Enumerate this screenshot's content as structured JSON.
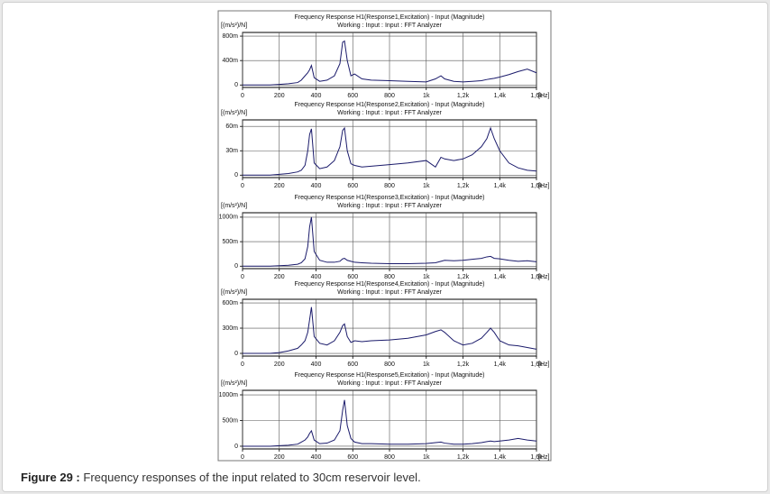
{
  "chart_data": [
    {
      "type": "line",
      "title": "Frequency Response H1(Response1,Excitation) - Input (Magnitude)",
      "subtitle": "Working : Input : Input : FFT Analyzer",
      "ylabel": "[(m/s²)/N]",
      "xlabel": "[Hz]",
      "x": [
        0,
        50,
        100,
        150,
        200,
        250,
        300,
        320,
        340,
        355,
        365,
        375,
        390,
        420,
        460,
        500,
        530,
        545,
        555,
        570,
        590,
        610,
        650,
        700,
        800,
        900,
        1000,
        1050,
        1080,
        1100,
        1150,
        1200,
        1250,
        1300,
        1330,
        1350,
        1370,
        1400,
        1450,
        1500,
        1550,
        1600
      ],
      "values": [
        0,
        0,
        0,
        0,
        0.01,
        0.02,
        0.04,
        0.08,
        0.15,
        0.2,
        0.25,
        0.32,
        0.12,
        0.06,
        0.08,
        0.15,
        0.35,
        0.7,
        0.72,
        0.4,
        0.15,
        0.18,
        0.1,
        0.08,
        0.07,
        0.06,
        0.05,
        0.1,
        0.15,
        0.1,
        0.06,
        0.05,
        0.06,
        0.07,
        0.09,
        0.1,
        0.11,
        0.13,
        0.17,
        0.22,
        0.26,
        0.2
      ],
      "color": "#1b1b6b",
      "xlim": [
        0,
        1600
      ],
      "xticks": [
        0,
        200,
        400,
        600,
        800,
        {
          "value": 1000,
          "label": "1k"
        },
        {
          "value": 1200,
          "label": "1,2k"
        },
        {
          "value": 1400,
          "label": "1,4k"
        },
        {
          "value": 1600,
          "label": "1,6k"
        }
      ],
      "ylim": [
        -0.04,
        0.86
      ],
      "yticks": [
        0,
        {
          "value": 0.4,
          "label": "400m"
        },
        {
          "value": 0.8,
          "label": "800m"
        }
      ],
      "grid": true
    },
    {
      "type": "line",
      "title": "Frequency Response H1(Response2,Excitation) - Input (Magnitude)",
      "subtitle": "Working : Input : Input : FFT Analyzer",
      "ylabel": "[(m/s²)/N]",
      "xlabel": "[Hz]",
      "x": [
        0,
        50,
        100,
        150,
        200,
        250,
        300,
        320,
        340,
        355,
        365,
        375,
        390,
        420,
        460,
        500,
        530,
        545,
        555,
        570,
        590,
        610,
        650,
        700,
        800,
        900,
        1000,
        1050,
        1080,
        1100,
        1150,
        1200,
        1250,
        1300,
        1330,
        1350,
        1370,
        1400,
        1450,
        1500,
        1550,
        1600
      ],
      "values": [
        0,
        0,
        0,
        0,
        0.001,
        0.002,
        0.004,
        0.006,
        0.012,
        0.03,
        0.05,
        0.057,
        0.015,
        0.008,
        0.01,
        0.018,
        0.035,
        0.055,
        0.058,
        0.03,
        0.014,
        0.012,
        0.01,
        0.011,
        0.013,
        0.015,
        0.018,
        0.01,
        0.022,
        0.02,
        0.018,
        0.02,
        0.025,
        0.035,
        0.045,
        0.058,
        0.045,
        0.03,
        0.015,
        0.009,
        0.006,
        0.005
      ],
      "color": "#1b1b6b",
      "xlim": [
        0,
        1600
      ],
      "xticks": [
        0,
        200,
        400,
        600,
        800,
        {
          "value": 1000,
          "label": "1k"
        },
        {
          "value": 1200,
          "label": "1,2k"
        },
        {
          "value": 1400,
          "label": "1,4k"
        },
        {
          "value": 1600,
          "label": "1,6k"
        }
      ],
      "ylim": [
        -0.003,
        0.068
      ],
      "yticks": [
        0,
        {
          "value": 0.03,
          "label": "30m"
        },
        {
          "value": 0.06,
          "label": "60m"
        }
      ],
      "grid": true
    },
    {
      "type": "line",
      "title": "Frequency Response H1(Response3,Excitation) - Input (Magnitude)",
      "subtitle": "Working : Input : Input : FFT Analyzer",
      "ylabel": "[(m/s²)/N]",
      "xlabel": "[Hz]",
      "x": [
        0,
        50,
        100,
        150,
        200,
        250,
        300,
        320,
        340,
        355,
        365,
        375,
        390,
        420,
        460,
        500,
        530,
        545,
        555,
        570,
        590,
        610,
        650,
        700,
        800,
        900,
        1000,
        1050,
        1080,
        1100,
        1150,
        1200,
        1250,
        1300,
        1330,
        1350,
        1370,
        1400,
        1450,
        1500,
        1550,
        1600
      ],
      "values": [
        0,
        0,
        0,
        0,
        0.01,
        0.02,
        0.04,
        0.07,
        0.15,
        0.4,
        0.8,
        1,
        0.3,
        0.12,
        0.08,
        0.08,
        0.1,
        0.15,
        0.16,
        0.12,
        0.1,
        0.08,
        0.07,
        0.06,
        0.05,
        0.05,
        0.06,
        0.07,
        0.1,
        0.12,
        0.11,
        0.12,
        0.14,
        0.16,
        0.19,
        0.2,
        0.16,
        0.15,
        0.12,
        0.1,
        0.11,
        0.09
      ],
      "color": "#1b1b6b",
      "xlim": [
        0,
        1600
      ],
      "xticks": [
        0,
        200,
        400,
        600,
        800,
        {
          "value": 1000,
          "label": "1k"
        },
        {
          "value": 1200,
          "label": "1,2k"
        },
        {
          "value": 1400,
          "label": "1,4k"
        },
        {
          "value": 1600,
          "label": "1,6k"
        }
      ],
      "ylim": [
        -0.05,
        1.09
      ],
      "yticks": [
        0,
        {
          "value": 0.5,
          "label": "500m"
        },
        {
          "value": 1,
          "label": "1000m"
        }
      ],
      "grid": true
    },
    {
      "type": "line",
      "title": "Frequency Response H1(Response4,Excitation) - Input (Magnitude)",
      "subtitle": "Working : Input : Input : FFT Analyzer",
      "ylabel": "[(m/s²)/N]",
      "xlabel": "[Hz]",
      "x": [
        0,
        50,
        100,
        150,
        200,
        250,
        300,
        320,
        340,
        355,
        365,
        375,
        390,
        420,
        460,
        500,
        530,
        545,
        555,
        570,
        590,
        610,
        650,
        700,
        800,
        900,
        1000,
        1050,
        1080,
        1100,
        1150,
        1200,
        1250,
        1300,
        1330,
        1350,
        1370,
        1400,
        1450,
        1500,
        1550,
        1600
      ],
      "values": [
        0,
        0,
        0,
        0,
        0.01,
        0.03,
        0.06,
        0.1,
        0.15,
        0.25,
        0.4,
        0.55,
        0.2,
        0.12,
        0.1,
        0.15,
        0.25,
        0.33,
        0.35,
        0.2,
        0.13,
        0.15,
        0.14,
        0.15,
        0.16,
        0.18,
        0.22,
        0.26,
        0.28,
        0.25,
        0.15,
        0.1,
        0.12,
        0.18,
        0.25,
        0.3,
        0.25,
        0.15,
        0.1,
        0.09,
        0.07,
        0.05
      ],
      "color": "#1b1b6b",
      "xlim": [
        0,
        1600
      ],
      "xticks": [
        0,
        200,
        400,
        600,
        800,
        {
          "value": 1000,
          "label": "1k"
        },
        {
          "value": 1200,
          "label": "1,2k"
        },
        {
          "value": 1400,
          "label": "1,4k"
        },
        {
          "value": 1600,
          "label": "1,6k"
        }
      ],
      "ylim": [
        -0.032,
        0.643
      ],
      "yticks": [
        0,
        {
          "value": 0.3,
          "label": "300m"
        },
        {
          "value": 0.6,
          "label": "600m"
        }
      ],
      "grid": true
    },
    {
      "type": "line",
      "title": "Frequency Response H1(Response5,Excitation) - Input (Magnitude)",
      "subtitle": "Working : Input : Input : FFT Analyzer",
      "ylabel": "[(m/s²)/N]",
      "xlabel": "[Hz]",
      "x": [
        0,
        50,
        100,
        150,
        200,
        250,
        300,
        320,
        340,
        355,
        365,
        375,
        390,
        420,
        460,
        500,
        530,
        545,
        555,
        570,
        590,
        610,
        650,
        700,
        800,
        900,
        1000,
        1050,
        1080,
        1100,
        1150,
        1200,
        1250,
        1300,
        1330,
        1350,
        1370,
        1400,
        1450,
        1500,
        1550,
        1600
      ],
      "values": [
        0,
        0,
        0,
        0,
        0.01,
        0.02,
        0.04,
        0.08,
        0.12,
        0.18,
        0.25,
        0.3,
        0.12,
        0.05,
        0.06,
        0.12,
        0.3,
        0.7,
        0.9,
        0.4,
        0.15,
        0.08,
        0.05,
        0.05,
        0.04,
        0.04,
        0.05,
        0.07,
        0.08,
        0.06,
        0.04,
        0.04,
        0.05,
        0.07,
        0.09,
        0.1,
        0.09,
        0.1,
        0.12,
        0.15,
        0.12,
        0.1
      ],
      "color": "#1b1b6b",
      "xlim": [
        0,
        1600
      ],
      "xticks": [
        0,
        200,
        400,
        600,
        800,
        {
          "value": 1000,
          "label": "1k"
        },
        {
          "value": 1200,
          "label": "1,2k"
        },
        {
          "value": 1400,
          "label": "1,4k"
        },
        {
          "value": 1600,
          "label": "1,6k"
        }
      ],
      "ylim": [
        -0.053,
        1.088
      ],
      "yticks": [
        0,
        {
          "value": 0.5,
          "label": "500m"
        },
        {
          "value": 1,
          "label": "1000m"
        }
      ],
      "grid": true
    }
  ],
  "caption": {
    "label": "Figure 29 :",
    "text": "Frequency responses of the input related to 30cm reservoir level."
  }
}
